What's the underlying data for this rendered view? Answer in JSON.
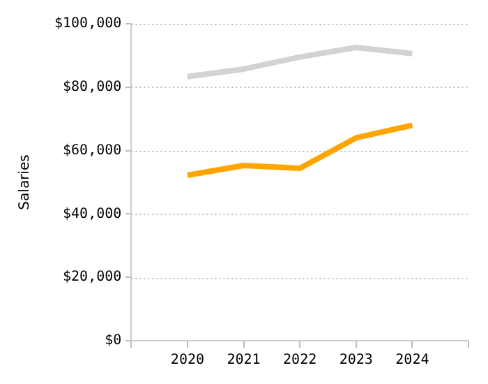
{
  "chart_data": {
    "type": "line",
    "ylabel": "Salaries",
    "x": [
      2020,
      2021,
      2022,
      2023,
      2024
    ],
    "series": [
      {
        "color": "#d3d3d3",
        "values": [
          83300,
          85700,
          89500,
          92500,
          90600
        ]
      },
      {
        "color": "#ffa500",
        "values": [
          52200,
          55300,
          54400,
          64000,
          68000
        ]
      }
    ],
    "xlim": [
      2019,
      2025
    ],
    "xticks": [
      {
        "value": 2019,
        "label": null
      },
      2020,
      2021,
      2022,
      2023,
      2024,
      {
        "value": 2025,
        "label": null
      }
    ],
    "ylim": [
      0,
      100000
    ],
    "yticks": [
      {
        "value": 0,
        "label": "$0"
      },
      {
        "value": 20000,
        "label": "$20,000"
      },
      {
        "value": 40000,
        "label": "$40,000"
      },
      {
        "value": 60000,
        "label": "$60,000"
      },
      {
        "value": 80000,
        "label": "$80,000"
      },
      {
        "value": 100000,
        "label": "$100,000"
      }
    ],
    "grid": "y",
    "legend": false,
    "marker": "none",
    "line_style": "solid"
  }
}
